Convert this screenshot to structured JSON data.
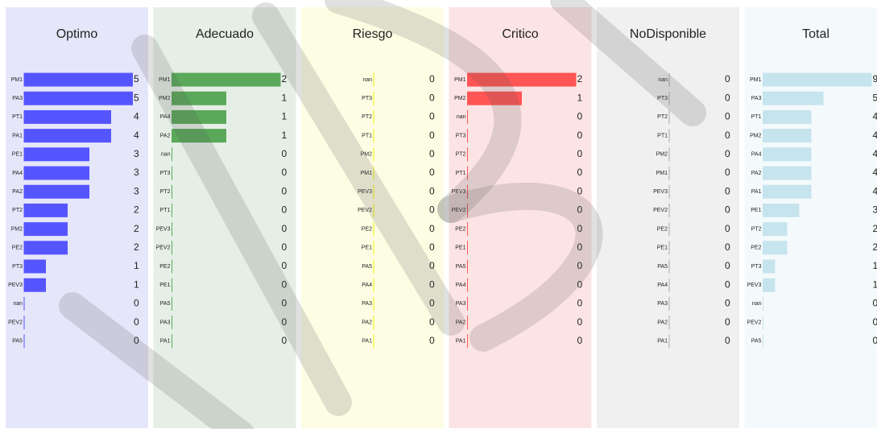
{
  "chart_data": [
    {
      "type": "bar",
      "orientation": "horizontal",
      "title": "Optimo",
      "color": "#5555ff",
      "background": "#e6e6fa",
      "xlim": [
        0,
        5
      ],
      "categories": [
        "PM1",
        "PA3",
        "PT1",
        "PA1",
        "PE1",
        "PA4",
        "PA2",
        "PT2",
        "PM2",
        "PE2",
        "PT3",
        "PEV3",
        "nan",
        "PEV2",
        "PA5"
      ],
      "values": [
        5,
        5,
        4,
        4,
        3,
        3,
        3,
        2,
        2,
        2,
        1,
        1,
        0,
        0,
        0
      ]
    },
    {
      "type": "bar",
      "orientation": "horizontal",
      "title": "Adecuado",
      "color": "#5aa85a",
      "background": "#e6efe6",
      "xlim": [
        0,
        2
      ],
      "categories": [
        "PM1",
        "PM2",
        "PA4",
        "PA2",
        "nan",
        "PT3",
        "PT2",
        "PT1",
        "PEV3",
        "PEV2",
        "PE2",
        "PE1",
        "PA5",
        "PA3",
        "PA1"
      ],
      "values": [
        2,
        1,
        1,
        1,
        0,
        0,
        0,
        0,
        0,
        0,
        0,
        0,
        0,
        0,
        0
      ]
    },
    {
      "type": "bar",
      "orientation": "horizontal",
      "title": "Riesgo",
      "color": "#f2f200",
      "background": "#fdfde4",
      "xlim": [
        0,
        1
      ],
      "categories": [
        "nan",
        "PT3",
        "PT2",
        "PT1",
        "PM2",
        "PM1",
        "PEV3",
        "PEV2",
        "PE2",
        "PE1",
        "PA5",
        "PA4",
        "PA3",
        "PA2",
        "PA1"
      ],
      "values": [
        0,
        0,
        0,
        0,
        0,
        0,
        0,
        0,
        0,
        0,
        0,
        0,
        0,
        0,
        0
      ]
    },
    {
      "type": "bar",
      "orientation": "horizontal",
      "title": "Critico",
      "color": "#ff5555",
      "background": "#fde4e4",
      "xlim": [
        0,
        2
      ],
      "categories": [
        "PM1",
        "PM2",
        "nan",
        "PT3",
        "PT2",
        "PT1",
        "PEV3",
        "PEV2",
        "PE2",
        "PE1",
        "PA5",
        "PA4",
        "PA3",
        "PA2",
        "PA1"
      ],
      "values": [
        2,
        1,
        0,
        0,
        0,
        0,
        0,
        0,
        0,
        0,
        0,
        0,
        0,
        0,
        0
      ]
    },
    {
      "type": "bar",
      "orientation": "horizontal",
      "title": "NoDisponible",
      "color": "#aaaaaa",
      "background": "#f0f0f0",
      "xlim": [
        0,
        1
      ],
      "categories": [
        "nan",
        "PT3",
        "PT2",
        "PT1",
        "PM2",
        "PM1",
        "PEV3",
        "PEV2",
        "PE2",
        "PE1",
        "PA5",
        "PA4",
        "PA3",
        "PA2",
        "PA1"
      ],
      "values": [
        0,
        0,
        0,
        0,
        0,
        0,
        0,
        0,
        0,
        0,
        0,
        0,
        0,
        0,
        0
      ]
    },
    {
      "type": "bar",
      "orientation": "horizontal",
      "title": "Total",
      "color": "#c6e4ee",
      "background": "#f4fafb",
      "xlim": [
        0,
        9
      ],
      "categories": [
        "PM1",
        "PA3",
        "PT1",
        "PM2",
        "PA4",
        "PA2",
        "PA1",
        "PE1",
        "PT2",
        "PE2",
        "PT3",
        "PEV3",
        "nan",
        "PEV2",
        "PA5"
      ],
      "values": [
        9,
        5,
        4,
        4,
        4,
        4,
        4,
        3,
        2,
        2,
        1,
        1,
        0,
        0,
        0
      ]
    }
  ]
}
